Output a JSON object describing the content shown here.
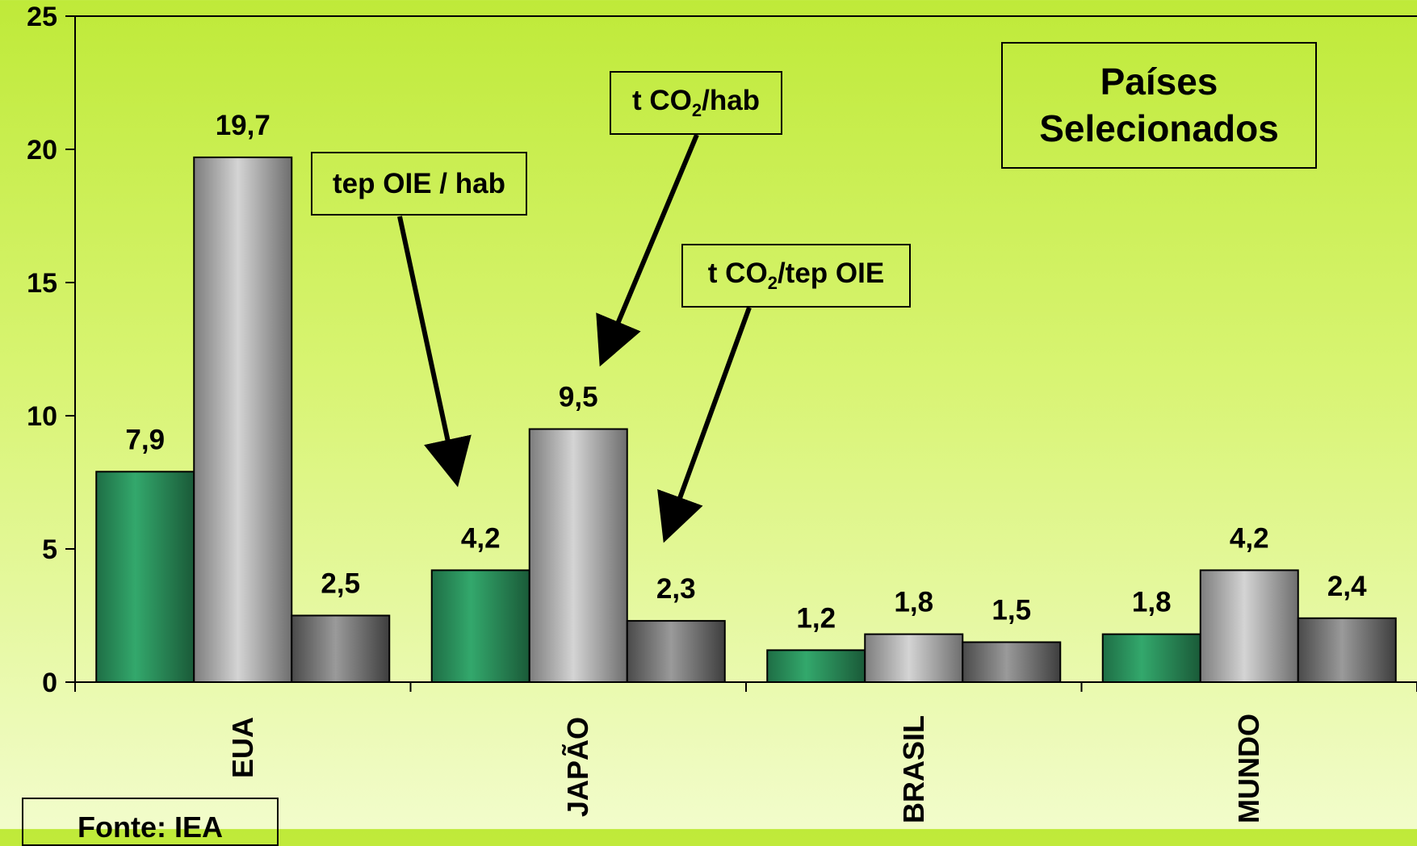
{
  "chart_data": {
    "type": "bar",
    "categories": [
      "EUA",
      "JAPÃO",
      "BRASIL",
      "MUNDO"
    ],
    "series": [
      {
        "name": "tep OIE / hab",
        "values": [
          7.9,
          4.2,
          1.2,
          1.8
        ],
        "labels": [
          "7,9",
          "4,2",
          "1,2",
          "1,8"
        ],
        "color": "#2a9a60"
      },
      {
        "name": "t CO₂/hab",
        "values": [
          19.7,
          9.5,
          1.8,
          4.2
        ],
        "labels": [
          "19,7",
          "9,5",
          "1,8",
          "4,2"
        ],
        "color": "#b8b8b8"
      },
      {
        "name": "t CO₂/tep OIE",
        "values": [
          2.5,
          2.3,
          1.5,
          2.4
        ],
        "labels": [
          "2,5",
          "2,3",
          "1,5",
          "2,4"
        ],
        "color": "#7a7a7a"
      }
    ],
    "yticks": [
      0,
      5,
      10,
      15,
      20,
      25
    ],
    "ylim": [
      0,
      25
    ],
    "title": "Países Selecionados",
    "source": "Fonte: IEA",
    "grid": false,
    "legend_placement": "callouts with arrows"
  },
  "annotations": {
    "tep_label_prefix": "tep OIE / hab",
    "co2hab_prefix": "t CO",
    "co2hab_sub": "2",
    "co2hab_suffix": "/hab",
    "co2tep_prefix": "t CO",
    "co2tep_sub": "2",
    "co2tep_suffix": "/tep OIE",
    "title_line1": "Países",
    "title_line2": "Selecionados",
    "fonte": "Fonte: IEA"
  }
}
